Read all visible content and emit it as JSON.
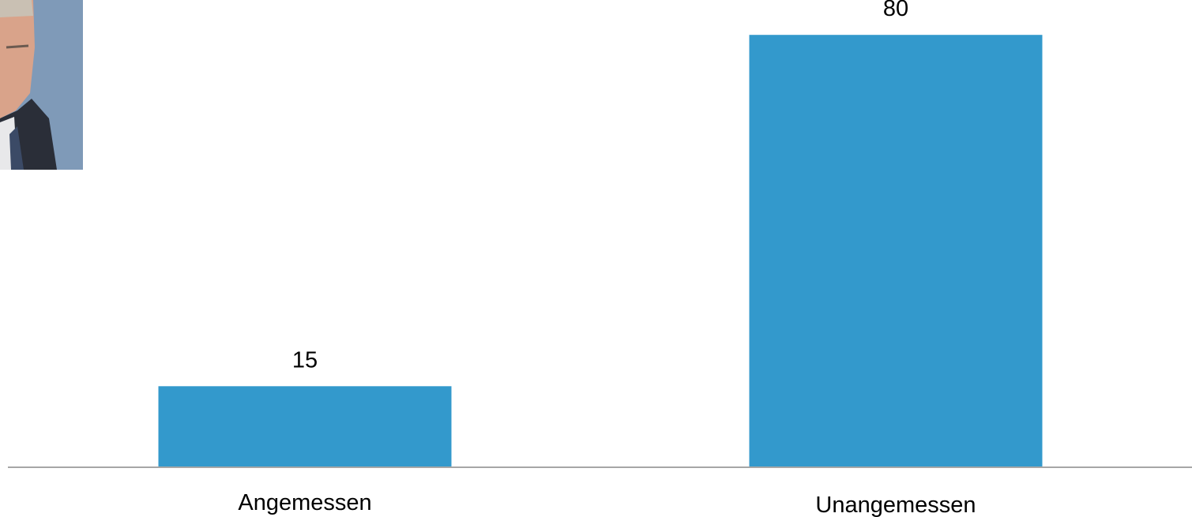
{
  "chart_data": {
    "type": "bar",
    "categories": [
      "Angemessen",
      "Unangemessen"
    ],
    "values": [
      15,
      80
    ],
    "title": "",
    "xlabel": "",
    "ylabel": "",
    "ylim": [
      0,
      85
    ],
    "grid": false,
    "legend": "none",
    "data_labels": [
      "15",
      "80"
    ],
    "bar_color": "#3399CC",
    "axis_color": "#A6A6A6"
  },
  "photo": {
    "icon": "portrait-photo"
  }
}
